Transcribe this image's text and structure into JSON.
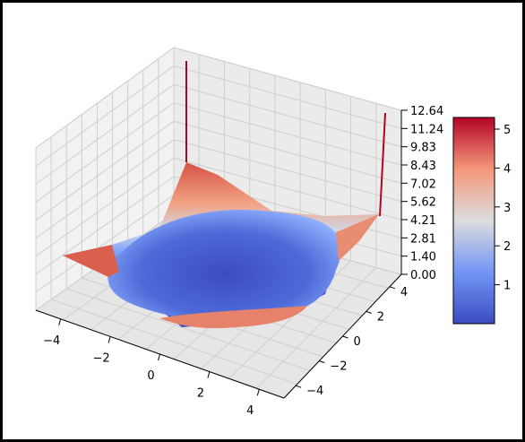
{
  "chart_data": {
    "type": "surface3d",
    "title": "",
    "xlabel": "",
    "ylabel": "",
    "zlabel": "",
    "grid": true,
    "colormap": "coolwarm",
    "x_ticks": [
      "−4",
      "−2",
      "0",
      "2",
      "4"
    ],
    "y_ticks": [
      "4",
      "2",
      "0",
      "−2",
      "−4"
    ],
    "z_ticks": [
      "12.64",
      "11.24",
      "9.83",
      "8.43",
      "7.02",
      "5.62",
      "4.21",
      "2.81",
      "1.40",
      "0.00"
    ],
    "xlim": [
      -5,
      5
    ],
    "ylim": [
      -5,
      5
    ],
    "zlim": [
      0,
      12.64
    ],
    "colorbar": {
      "ticks": [
        "5",
        "4",
        "3",
        "2",
        "1"
      ],
      "range": [
        0,
        5.3
      ]
    },
    "surface_description_points": [
      {
        "x": -5,
        "y": 5,
        "z": 5.0
      },
      {
        "x": 5,
        "y": 5,
        "z": 5.0
      },
      {
        "x": -5,
        "y": -5,
        "z": 3.2
      },
      {
        "x": 5,
        "y": -5,
        "z": 3.5
      },
      {
        "x": 0,
        "y": 0,
        "z": 0.5
      }
    ],
    "spikes": [
      {
        "x": -2.5,
        "y": 5,
        "z": 12.64
      },
      {
        "x": 5,
        "y": 2,
        "z": 11.0
      }
    ]
  }
}
